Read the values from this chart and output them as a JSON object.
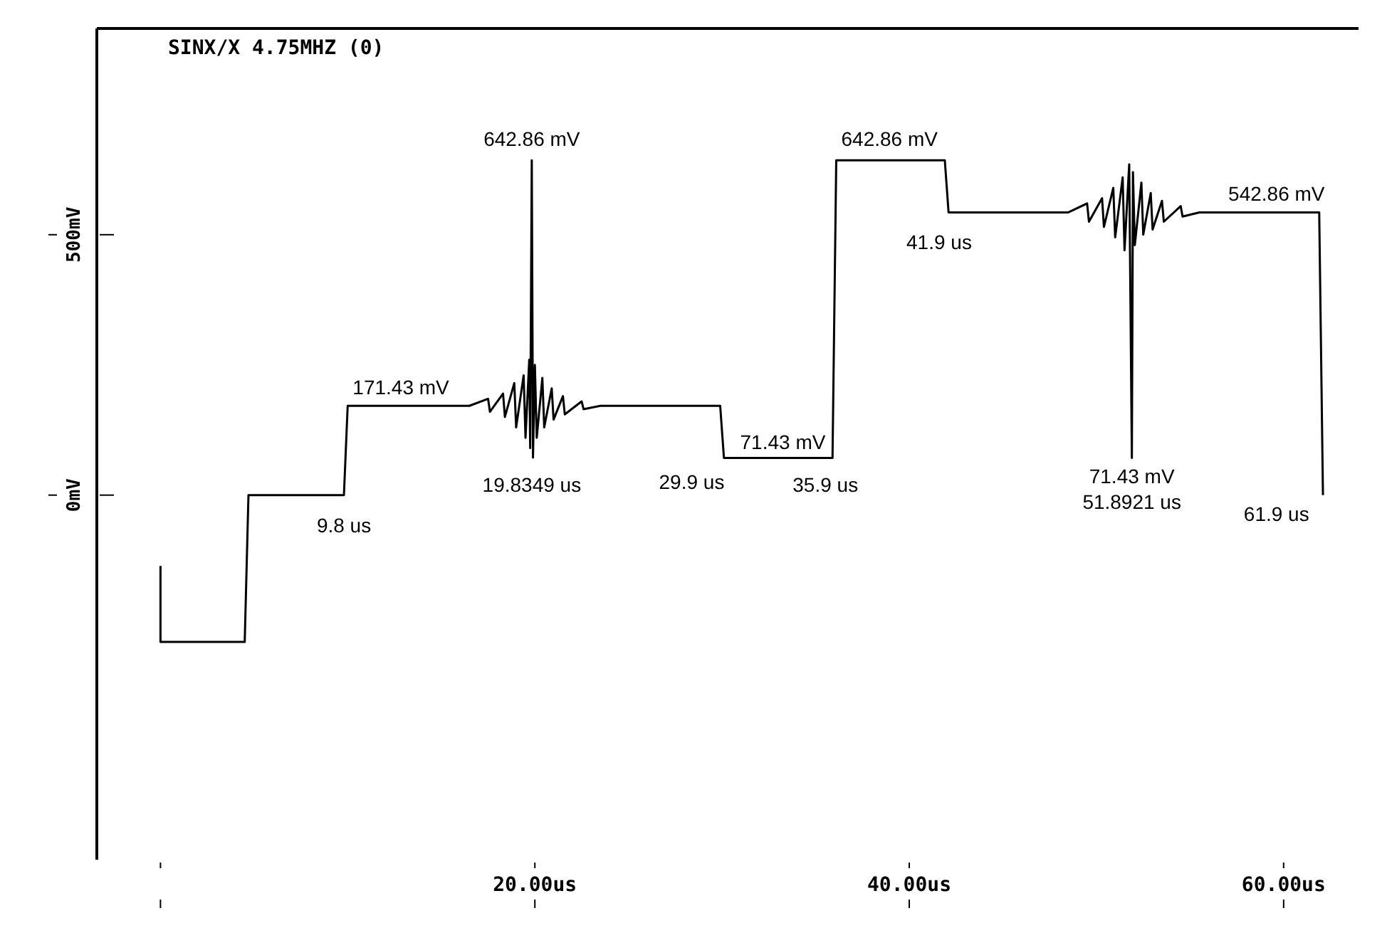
{
  "chart_data": {
    "type": "line",
    "title": "SINX/X 4.75MHZ (0)",
    "series": [
      {
        "color": "#000000",
        "x": [
          0,
          0,
          4.5,
          4.7,
          9.8,
          10.0,
          16.5,
          17.5,
          17.6,
          18.3,
          18.4,
          18.9,
          19.0,
          19.4,
          19.5,
          19.7,
          19.75,
          19.8349,
          19.9,
          20.0,
          20.1,
          20.4,
          20.5,
          20.9,
          21.0,
          21.5,
          21.6,
          22.5,
          22.6,
          23.5,
          29.9,
          30.1,
          35.9,
          36.1,
          41.9,
          42.1,
          48.5,
          49.5,
          49.6,
          50.3,
          50.4,
          50.9,
          51.0,
          51.4,
          51.5,
          51.75,
          51.8921,
          51.95,
          52.05,
          52.4,
          52.5,
          52.9,
          53.0,
          53.5,
          53.6,
          54.5,
          54.6,
          55.5,
          61.9,
          62.1
        ],
        "values": [
          -136,
          -282,
          -282,
          0,
          0,
          171.43,
          171.43,
          185,
          160,
          195,
          150,
          215,
          130,
          230,
          110,
          260,
          90,
          642.86,
          72,
          250,
          110,
          225,
          130,
          205,
          145,
          190,
          155,
          180,
          165,
          171.43,
          171.43,
          71.43,
          71.43,
          642.86,
          642.86,
          542.86,
          542.86,
          560,
          525,
          570,
          515,
          590,
          495,
          610,
          470,
          635,
          71.43,
          620,
          480,
          600,
          500,
          580,
          510,
          565,
          525,
          555,
          535,
          542.86,
          542.86,
          0
        ]
      }
    ],
    "xlim": [
      -3.4,
      64
    ],
    "xticks": [
      {
        "value": 0,
        "label": null
      },
      {
        "value": 20,
        "label": "20.00us"
      },
      {
        "value": 40,
        "label": "40.00us"
      },
      {
        "value": 60,
        "label": "60.00us"
      }
    ],
    "ylim": [
      -700,
      896
    ],
    "yticks": [
      {
        "value": 0,
        "label": "0mV"
      },
      {
        "value": 500,
        "label": "500mV"
      }
    ],
    "grid": false,
    "legend": false,
    "marker": "none",
    "line_style": "solid",
    "annotations": [
      {
        "text": "642.86 mV",
        "x": 19.8349,
        "y": 642.86
      },
      {
        "text": "171.43 mV",
        "x": 9.8,
        "y": 171.43
      },
      {
        "text": "9.8 us",
        "x": 9.8,
        "y": 0
      },
      {
        "text": "19.8349 us",
        "x": 19.8349,
        "y": 72
      },
      {
        "text": "29.9 us",
        "x": 29.9,
        "y": 71.43
      },
      {
        "text": "71.43 mV",
        "x": 29.9,
        "y": 71.43
      },
      {
        "text": "35.9 us",
        "x": 35.9,
        "y": 71.43
      },
      {
        "text": "642.86 mV",
        "x": 35.9,
        "y": 642.86
      },
      {
        "text": "41.9 us",
        "x": 41.9,
        "y": 542.86
      },
      {
        "text": "542.86 mV",
        "x": 61.9,
        "y": 542.86
      },
      {
        "text": "71.43 mV",
        "x": 51.8921,
        "y": 71.43
      },
      {
        "text": "51.8921 us",
        "x": 51.8921,
        "y": 71.43
      },
      {
        "text": "61.9 us",
        "x": 61.9,
        "y": 0
      }
    ]
  }
}
